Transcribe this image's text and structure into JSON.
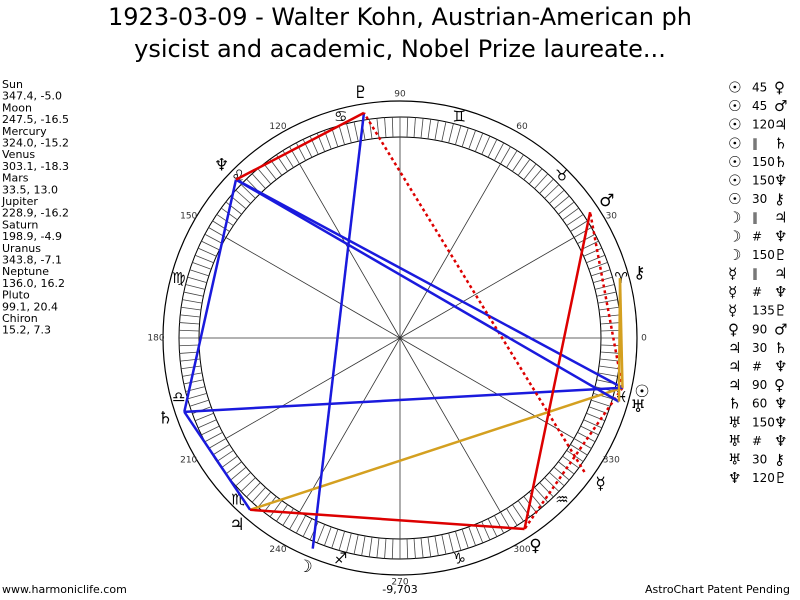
{
  "title_lines": [
    "1923-03-09 - Walter Kohn, Austrian-American ph",
    "ysicist and academic, Nobel Prize laureate..."
  ],
  "planets": [
    {
      "name": "Sun",
      "coords": "347.4, -5.0",
      "glyph": "☉"
    },
    {
      "name": "Moon",
      "coords": "247.5, -16.5",
      "glyph": "☽"
    },
    {
      "name": "Mercury",
      "coords": "324.0, -15.2",
      "glyph": "☿"
    },
    {
      "name": "Venus",
      "coords": "303.1, -18.3",
      "glyph": "♀"
    },
    {
      "name": "Mars",
      "coords": "33.5, 13.0",
      "glyph": "♂"
    },
    {
      "name": "Jupiter",
      "coords": "228.9, -16.2",
      "glyph": "♃"
    },
    {
      "name": "Saturn",
      "coords": "198.9, -4.9",
      "glyph": "♄"
    },
    {
      "name": "Uranus",
      "coords": "343.8, -7.1",
      "glyph": "♅"
    },
    {
      "name": "Neptune",
      "coords": "136.0, 16.2",
      "glyph": "♆"
    },
    {
      "name": "Pluto",
      "coords": "99.1, 20.4",
      "glyph": "♇"
    },
    {
      "name": "Chiron",
      "coords": "15.2, 7.3",
      "glyph": "⚷"
    }
  ],
  "aspects": [
    {
      "from": "☉",
      "aspect": 45,
      "to": "♀",
      "color": "#dd0000",
      "dash": true
    },
    {
      "from": "☉",
      "aspect": 45,
      "to": "♂",
      "color": "#dd0000",
      "dash": true
    },
    {
      "from": "☉",
      "aspect": 120,
      "to": "♃",
      "color": "#d4a020"
    },
    {
      "from": "☉",
      "aspect": "∥",
      "to": "♄"
    },
    {
      "from": "☉",
      "aspect": 150,
      "to": "♄",
      "color": "#1a1add"
    },
    {
      "from": "☉",
      "aspect": 150,
      "to": "♆",
      "color": "#1a1add"
    },
    {
      "from": "☉",
      "aspect": 30,
      "to": "⚷",
      "color": "#d4a020"
    },
    {
      "from": "☽",
      "aspect": "∥",
      "to": "♃"
    },
    {
      "from": "☽",
      "aspect": "#",
      "to": "♆"
    },
    {
      "from": "☽",
      "aspect": 150,
      "to": "♇",
      "color": "#1a1add"
    },
    {
      "from": "☿",
      "aspect": "∥",
      "to": "♃"
    },
    {
      "from": "☿",
      "aspect": "#",
      "to": "♆"
    },
    {
      "from": "☿",
      "aspect": 135,
      "to": "♇",
      "color": "#dd0000",
      "dash": true
    },
    {
      "from": "♀",
      "aspect": 90,
      "to": "♂",
      "color": "#dd0000"
    },
    {
      "from": "♃",
      "aspect": 30,
      "to": "♄",
      "color": "#1a1add"
    },
    {
      "from": "♃",
      "aspect": "#",
      "to": "♆"
    },
    {
      "from": "♃",
      "aspect": 90,
      "to": "♀",
      "color": "#dd0000"
    },
    {
      "from": "♄",
      "aspect": 60,
      "to": "♆",
      "color": "#1a1add"
    },
    {
      "from": "♅",
      "aspect": 150,
      "to": "♆",
      "color": "#1a1add"
    },
    {
      "from": "♅",
      "aspect": "#",
      "to": "♆"
    },
    {
      "from": "♅",
      "aspect": 30,
      "to": "⚷",
      "color": "#d4a020"
    },
    {
      "from": "♆",
      "aspect": 120,
      "to": "♇",
      "color": "#dd0000"
    }
  ],
  "zodiac": [
    "♈",
    "♉",
    "♊",
    "♋",
    "♌",
    "♍",
    "♎",
    "♏",
    "♐",
    "♑",
    "♒",
    "♓"
  ],
  "degree_labels": [
    0,
    30,
    60,
    90,
    120,
    150,
    180,
    210,
    240,
    270,
    300,
    330
  ],
  "footer": {
    "left": "www.harmoniclife.com",
    "center": "-9,703",
    "right": "AstroChart Patent Pending"
  }
}
